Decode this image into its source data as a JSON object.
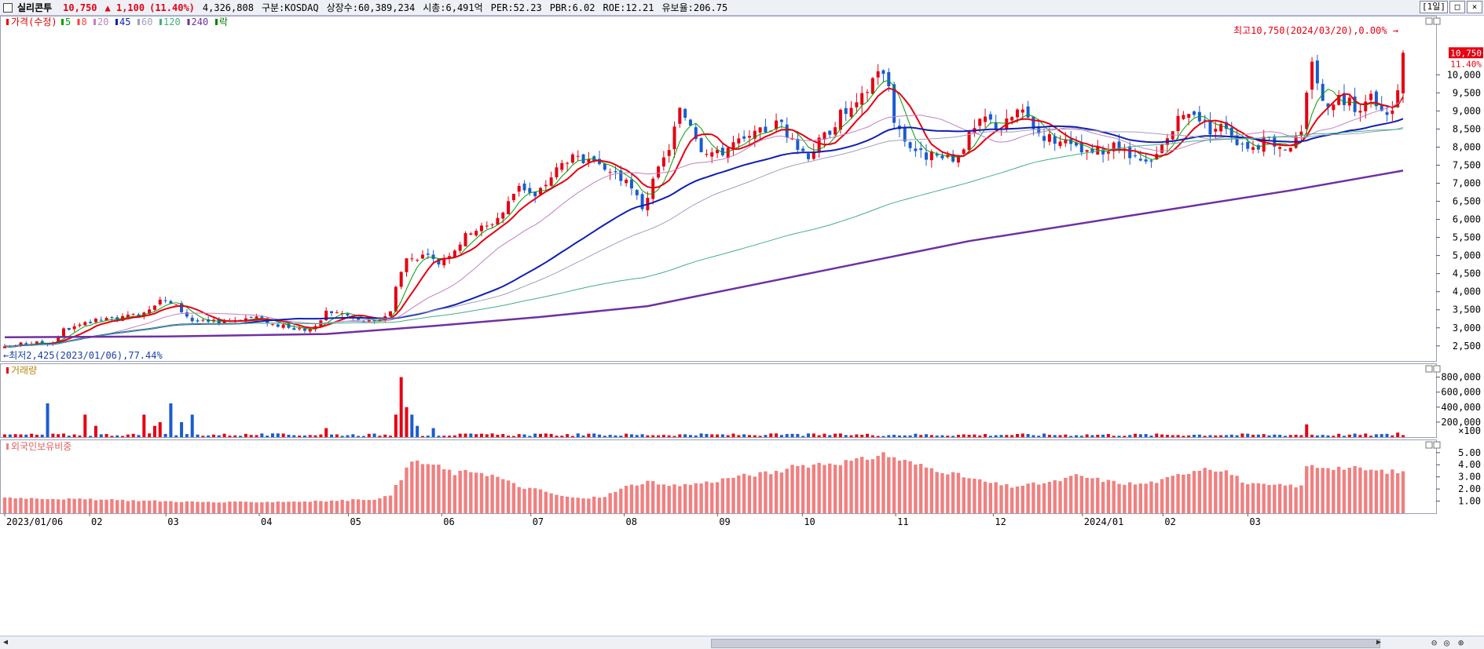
{
  "header": {
    "name": "실리콘투",
    "price": "10,750",
    "change": "▲ 1,100",
    "change_pct": "(11.40%)",
    "volume": "4,326,808",
    "market": "구분:KOSDAQ",
    "shares": "상장수:60,389,234",
    "mcap": "시총:6,491억",
    "per": "PER:52.23",
    "pbr": "PBR:6.02",
    "roe": "ROE:12.21",
    "float": "유보율:206.75",
    "period": "[1일]"
  },
  "legend": {
    "price": "가격(수정)",
    "ma": [
      {
        "label": "5",
        "color": "#00a000"
      },
      {
        "label": "8",
        "color": "#ff4040"
      },
      {
        "label": "20",
        "color": "#c080c0"
      },
      {
        "label": "45",
        "color": "#1020b0"
      },
      {
        "label": "60",
        "color": "#a0a0c0"
      },
      {
        "label": "120",
        "color": "#40b080"
      },
      {
        "label": "240",
        "color": "#7030a0"
      },
      {
        "label": "락",
        "color": "#008000"
      }
    ]
  },
  "annotations": {
    "high": "최고10,750(2024/03/20),0.00%",
    "low": "최저2,425(2023/01/06),77.44%",
    "last_price": "10,750",
    "last_pct": "11.40%"
  },
  "volume_panel": {
    "title": "거래량",
    "ticks": [
      "800,000",
      "600,000",
      "400,000",
      "200,000",
      "×100"
    ]
  },
  "foreign_panel": {
    "title": "외국인보유비중",
    "ticks": [
      "5.00",
      "4.00",
      "3.00",
      "2.00",
      "1.00"
    ]
  },
  "x_labels": [
    "2023/01/06",
    "02",
    "03",
    "04",
    "05",
    "06",
    "07",
    "08",
    "09",
    "10",
    "11",
    "12",
    "2024/01",
    "02",
    "03"
  ],
  "colors": {
    "up": "#e60012",
    "down": "#1a5ccf",
    "ma5": "#00a000",
    "ma8": "#e60012",
    "ma20": "#c080c0",
    "ma45": "#1020b0",
    "ma60": "#a0a0c0",
    "ma120": "#40b080",
    "ma240": "#7030a0",
    "foreign": "#f08080"
  },
  "chart_data": {
    "type": "candlestick",
    "price_ticks": [
      2500,
      3000,
      3500,
      4000,
      4500,
      5000,
      5500,
      6000,
      6500,
      7000,
      7500,
      8000,
      8500,
      9000,
      9500,
      10000
    ],
    "price_ylim": [
      2300,
      11200
    ],
    "close_path": [
      [
        0,
        2450
      ],
      [
        3,
        2550
      ],
      [
        7,
        2600
      ],
      [
        9,
        2600
      ],
      [
        11,
        2950
      ],
      [
        14,
        3050
      ],
      [
        17,
        3200
      ],
      [
        20,
        3250
      ],
      [
        23,
        3300
      ],
      [
        26,
        3450
      ],
      [
        29,
        3800
      ],
      [
        32,
        3600
      ],
      [
        35,
        3200
      ],
      [
        38,
        3150
      ],
      [
        41,
        3200
      ],
      [
        44,
        3250
      ],
      [
        47,
        3300
      ],
      [
        50,
        3100
      ],
      [
        53,
        3000
      ],
      [
        56,
        2950
      ],
      [
        58,
        3000
      ],
      [
        60,
        3450
      ],
      [
        63,
        3400
      ],
      [
        66,
        3200
      ],
      [
        69,
        3150
      ],
      [
        72,
        3450
      ],
      [
        73,
        4200
      ],
      [
        75,
        4900
      ],
      [
        78,
        5000
      ],
      [
        81,
        4800
      ],
      [
        84,
        5200
      ],
      [
        87,
        5700
      ],
      [
        90,
        5800
      ],
      [
        93,
        6200
      ],
      [
        96,
        7000
      ],
      [
        99,
        6600
      ],
      [
        102,
        7200
      ],
      [
        105,
        7700
      ],
      [
        108,
        7600
      ],
      [
        111,
        7400
      ],
      [
        114,
        7300
      ],
      [
        117,
        6800
      ],
      [
        119,
        6350
      ],
      [
        121,
        7000
      ],
      [
        124,
        8000
      ],
      [
        126,
        9000
      ],
      [
        128,
        8700
      ],
      [
        130,
        8000
      ],
      [
        133,
        7800
      ],
      [
        136,
        8100
      ],
      [
        139,
        8200
      ],
      [
        142,
        8500
      ],
      [
        145,
        8700
      ],
      [
        147,
        8100
      ],
      [
        150,
        7800
      ],
      [
        153,
        8300
      ],
      [
        156,
        8900
      ],
      [
        159,
        9100
      ],
      [
        161,
        9600
      ],
      [
        163,
        10200
      ],
      [
        165,
        9700
      ],
      [
        166,
        8800
      ],
      [
        168,
        8200
      ],
      [
        171,
        7800
      ],
      [
        174,
        7700
      ],
      [
        177,
        7600
      ],
      [
        180,
        8300
      ],
      [
        183,
        8800
      ],
      [
        186,
        8500
      ],
      [
        189,
        9000
      ],
      [
        191,
        8800
      ],
      [
        193,
        8400
      ],
      [
        196,
        8200
      ],
      [
        199,
        8000
      ],
      [
        202,
        7800
      ],
      [
        205,
        7900
      ],
      [
        208,
        8000
      ],
      [
        211,
        7600
      ],
      [
        214,
        7500
      ],
      [
        216,
        8000
      ],
      [
        219,
        8700
      ],
      [
        222,
        9000
      ],
      [
        225,
        8500
      ],
      [
        228,
        8600
      ],
      [
        230,
        8200
      ],
      [
        233,
        8000
      ],
      [
        236,
        8200
      ],
      [
        239,
        8000
      ],
      [
        242,
        8300
      ],
      [
        244,
        10500
      ],
      [
        246,
        9200
      ],
      [
        249,
        9400
      ],
      [
        252,
        9100
      ],
      [
        255,
        9300
      ],
      [
        258,
        8800
      ],
      [
        260,
        9500
      ],
      [
        261,
        10750
      ]
    ],
    "ma_spec": [
      {
        "key": "ma5",
        "period": 5,
        "width": 1
      },
      {
        "key": "ma8",
        "period": 8,
        "width": 2
      },
      {
        "key": "ma20",
        "period": 20,
        "width": 1
      },
      {
        "key": "ma45",
        "period": 45,
        "width": 2
      },
      {
        "key": "ma60",
        "period": 60,
        "width": 1
      },
      {
        "key": "ma120",
        "period": 120,
        "width": 1
      }
    ],
    "ma240_path": [
      [
        0,
        2740
      ],
      [
        30,
        2760
      ],
      [
        60,
        2830
      ],
      [
        80,
        3050
      ],
      [
        100,
        3300
      ],
      [
        120,
        3600
      ],
      [
        150,
        4500
      ],
      [
        180,
        5400
      ],
      [
        210,
        6100
      ],
      [
        240,
        6800
      ],
      [
        261,
        7350
      ]
    ],
    "ma45_early": [
      [
        0,
        2650
      ],
      [
        30,
        3250
      ],
      [
        60,
        3250
      ],
      [
        73,
        3250
      ]
    ],
    "volume_ticks": [
      800000,
      600000,
      400000,
      200000
    ],
    "volume_ylim": [
      0,
      900000
    ],
    "volume_spikes": [
      [
        8,
        450000
      ],
      [
        15,
        300000
      ],
      [
        17,
        150000
      ],
      [
        26,
        300000
      ],
      [
        28,
        150000
      ],
      [
        29,
        200000
      ],
      [
        31,
        450000
      ],
      [
        33,
        200000
      ],
      [
        35,
        300000
      ],
      [
        60,
        120000
      ],
      [
        73,
        300000
      ],
      [
        74,
        800000
      ],
      [
        75,
        400000
      ],
      [
        76,
        300000
      ],
      [
        77,
        150000
      ],
      [
        80,
        120000
      ],
      [
        243,
        170000
      ],
      [
        260,
        60000
      ]
    ],
    "foreign_ticks": [
      5.0,
      4.0,
      3.0,
      2.0,
      1.0
    ],
    "foreign_ylim": [
      0,
      5.7
    ],
    "foreign_path": [
      [
        0,
        1.3
      ],
      [
        20,
        1.1
      ],
      [
        40,
        0.9
      ],
      [
        60,
        1.0
      ],
      [
        70,
        1.2
      ],
      [
        72,
        1.5
      ],
      [
        76,
        4.3
      ],
      [
        80,
        4.0
      ],
      [
        84,
        3.3
      ],
      [
        88,
        3.5
      ],
      [
        92,
        3.0
      ],
      [
        96,
        2.2
      ],
      [
        100,
        1.9
      ],
      [
        104,
        1.4
      ],
      [
        108,
        1.2
      ],
      [
        112,
        1.4
      ],
      [
        116,
        2.2
      ],
      [
        120,
        2.6
      ],
      [
        124,
        2.2
      ],
      [
        128,
        2.4
      ],
      [
        132,
        2.6
      ],
      [
        136,
        3.0
      ],
      [
        140,
        3.2
      ],
      [
        144,
        3.4
      ],
      [
        148,
        3.9
      ],
      [
        152,
        4.1
      ],
      [
        156,
        4.2
      ],
      [
        160,
        4.4
      ],
      [
        164,
        4.9
      ],
      [
        168,
        4.3
      ],
      [
        172,
        3.8
      ],
      [
        176,
        3.4
      ],
      [
        180,
        2.9
      ],
      [
        184,
        2.5
      ],
      [
        188,
        2.2
      ],
      [
        192,
        2.4
      ],
      [
        196,
        2.6
      ],
      [
        200,
        3.1
      ],
      [
        204,
        2.8
      ],
      [
        208,
        2.5
      ],
      [
        212,
        2.4
      ],
      [
        216,
        2.7
      ],
      [
        220,
        3.3
      ],
      [
        224,
        3.8
      ],
      [
        228,
        3.5
      ],
      [
        232,
        2.4
      ],
      [
        236,
        2.3
      ],
      [
        240,
        2.3
      ],
      [
        242,
        2.2
      ],
      [
        243,
        3.9
      ],
      [
        248,
        3.8
      ],
      [
        252,
        3.7
      ],
      [
        256,
        3.5
      ],
      [
        260,
        3.4
      ]
    ]
  }
}
